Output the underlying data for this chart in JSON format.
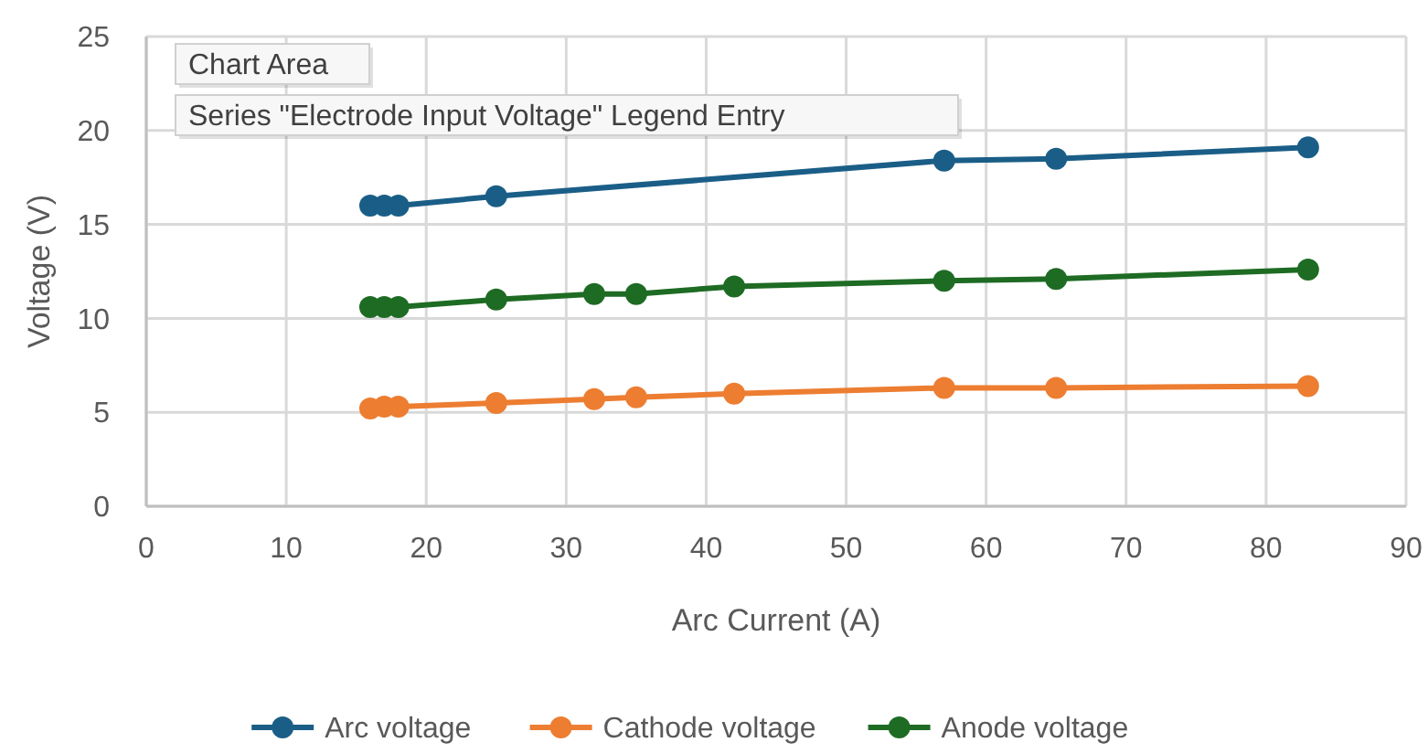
{
  "chart_data": {
    "type": "line",
    "xlabel": "Arc Current (A)",
    "ylabel": "Voltage (V)",
    "x": [
      16,
      17,
      18,
      25,
      32,
      35,
      42,
      57,
      65,
      83
    ],
    "xlim": [
      0,
      90
    ],
    "xticks": [
      0,
      10,
      20,
      30,
      40,
      50,
      60,
      70,
      80,
      90
    ],
    "ylim": [
      0,
      25
    ],
    "yticks": [
      0,
      5,
      10,
      15,
      20,
      25
    ],
    "grid": true,
    "legend": "bottom",
    "marker": "circle",
    "line_style": "solid",
    "series": [
      {
        "name": "Arc voltage",
        "color": "#1a5e87",
        "values": [
          16.0,
          16.0,
          16.0,
          16.5,
          null,
          null,
          null,
          18.4,
          18.5,
          19.1
        ]
      },
      {
        "name": "Cathode voltage",
        "color": "#ed7d31",
        "values": [
          5.2,
          5.3,
          5.3,
          5.5,
          5.7,
          5.8,
          6.0,
          6.3,
          6.3,
          6.4
        ]
      },
      {
        "name": "Anode voltage",
        "color": "#1e6b24",
        "values": [
          10.6,
          10.6,
          10.6,
          11.0,
          11.3,
          11.3,
          11.7,
          12.0,
          12.1,
          12.6
        ]
      }
    ],
    "annotations": [
      "Chart Area",
      "Series \"Electrode Input Voltage\" Legend Entry"
    ]
  }
}
